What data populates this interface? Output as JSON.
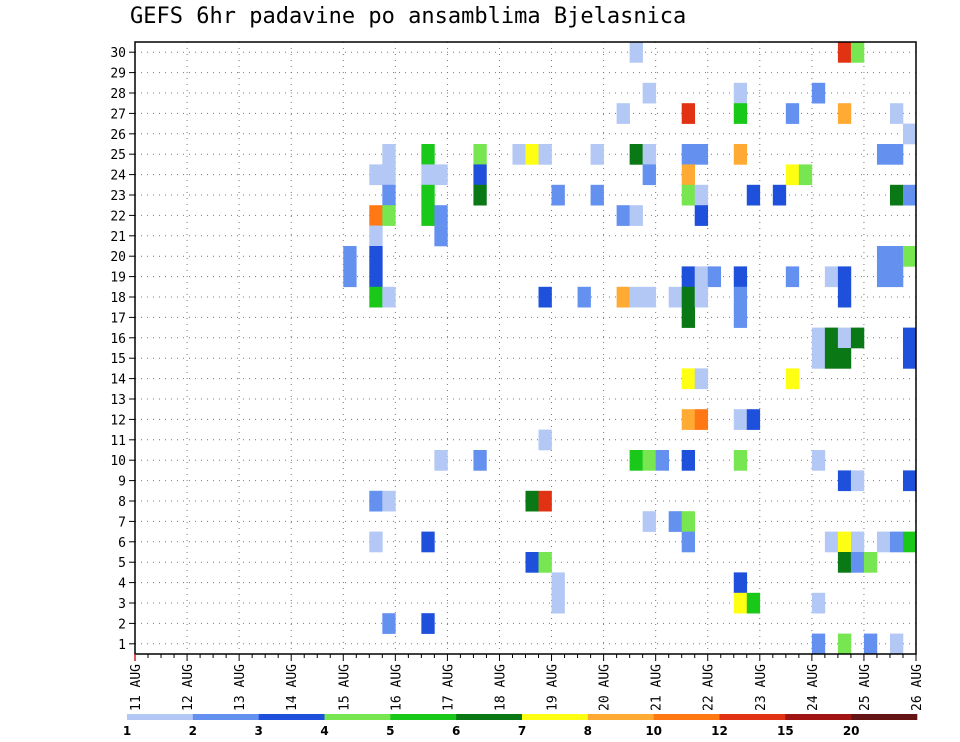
{
  "chart_data": {
    "type": "heatmap",
    "title": "GEFS 6hr padavine po ansamblima Bjelasnica",
    "x_tick_labels": [
      "11 AUG",
      "12 AUG",
      "13 AUG",
      "14 AUG",
      "15 AUG",
      "16 AUG",
      "17 AUG",
      "18 AUG",
      "19 AUG",
      "20 AUG",
      "21 AUG",
      "22 AUG",
      "23 AUG",
      "24 AUG",
      "25 AUG",
      "26 AUG"
    ],
    "y_tick_labels": [
      "1",
      "2",
      "3",
      "4",
      "5",
      "6",
      "7",
      "8",
      "9",
      "10",
      "11",
      "12",
      "13",
      "14",
      "15",
      "16",
      "17",
      "18",
      "19",
      "20",
      "21",
      "22",
      "23",
      "24",
      "25",
      "26",
      "27",
      "28",
      "29",
      "30"
    ],
    "x_unit": "6hr steps since 11 AUG 00z",
    "xlim": [
      0,
      60
    ],
    "ylim": [
      0.5,
      30.5
    ],
    "grid": true,
    "legend_placement": "bottom",
    "colorbar": {
      "labels": [
        "1",
        "2",
        "3",
        "4",
        "5",
        "6",
        "7",
        "8",
        "10",
        "12",
        "15",
        "20"
      ],
      "colors": [
        "#b4c8f5",
        "#6490f0",
        "#1e50dc",
        "#78e650",
        "#19c819",
        "#0a7814",
        "#ffff14",
        "#ffaa32",
        "#ff7814",
        "#e13214",
        "#a01414",
        "#641414"
      ]
    },
    "cells": [
      {
        "member": 30,
        "step": 38.5,
        "bin": 0
      },
      {
        "member": 30,
        "step": 54.5,
        "bin": 9
      },
      {
        "member": 30,
        "step": 55.5,
        "bin": 3
      },
      {
        "member": 28,
        "step": 39.5,
        "bin": 0
      },
      {
        "member": 28,
        "step": 46.5,
        "bin": 0
      },
      {
        "member": 28,
        "step": 52.5,
        "bin": 1
      },
      {
        "member": 27,
        "step": 37.5,
        "bin": 0
      },
      {
        "member": 27,
        "step": 42.5,
        "bin": 9
      },
      {
        "member": 27,
        "step": 46.5,
        "bin": 4
      },
      {
        "member": 27,
        "step": 50.5,
        "bin": 1
      },
      {
        "member": 27,
        "step": 54.5,
        "bin": 7
      },
      {
        "member": 27,
        "step": 58.5,
        "bin": 0
      },
      {
        "member": 26,
        "step": 59.5,
        "bin": 0
      },
      {
        "member": 25,
        "step": 19.5,
        "bin": 0
      },
      {
        "member": 25,
        "step": 22.5,
        "bin": 4
      },
      {
        "member": 25,
        "step": 26.5,
        "bin": 3
      },
      {
        "member": 25,
        "step": 29.5,
        "bin": 0
      },
      {
        "member": 25,
        "step": 30.5,
        "bin": 6
      },
      {
        "member": 25,
        "step": 31.5,
        "bin": 0
      },
      {
        "member": 25,
        "step": 35.5,
        "bin": 0
      },
      {
        "member": 25,
        "step": 38.5,
        "bin": 5
      },
      {
        "member": 25,
        "step": 39.5,
        "bin": 0
      },
      {
        "member": 25,
        "step": 42.5,
        "bin": 1
      },
      {
        "member": 25,
        "step": 43.5,
        "bin": 1
      },
      {
        "member": 25,
        "step": 46.5,
        "bin": 7
      },
      {
        "member": 25,
        "step": 57.5,
        "bin": 1
      },
      {
        "member": 25,
        "step": 58.5,
        "bin": 1
      },
      {
        "member": 24,
        "step": 18.5,
        "bin": 0
      },
      {
        "member": 24,
        "step": 19.5,
        "bin": 0
      },
      {
        "member": 24,
        "step": 22.5,
        "bin": 0
      },
      {
        "member": 24,
        "step": 23.5,
        "bin": 0
      },
      {
        "member": 24,
        "step": 26.5,
        "bin": 2
      },
      {
        "member": 24,
        "step": 39.5,
        "bin": 1
      },
      {
        "member": 24,
        "step": 42.5,
        "bin": 7
      },
      {
        "member": 24,
        "step": 50.5,
        "bin": 6
      },
      {
        "member": 24,
        "step": 51.5,
        "bin": 3
      },
      {
        "member": 23,
        "step": 19.5,
        "bin": 1
      },
      {
        "member": 23,
        "step": 22.5,
        "bin": 4
      },
      {
        "member": 23,
        "step": 26.5,
        "bin": 5
      },
      {
        "member": 23,
        "step": 32.5,
        "bin": 1
      },
      {
        "member": 23,
        "step": 35.5,
        "bin": 1
      },
      {
        "member": 23,
        "step": 42.5,
        "bin": 3
      },
      {
        "member": 23,
        "step": 43.5,
        "bin": 0
      },
      {
        "member": 23,
        "step": 47.5,
        "bin": 2
      },
      {
        "member": 23,
        "step": 49.5,
        "bin": 2
      },
      {
        "member": 23,
        "step": 58.5,
        "bin": 5
      },
      {
        "member": 23,
        "step": 59.5,
        "bin": 1
      },
      {
        "member": 22,
        "step": 18.5,
        "bin": 8
      },
      {
        "member": 22,
        "step": 19.5,
        "bin": 3
      },
      {
        "member": 22,
        "step": 22.5,
        "bin": 4
      },
      {
        "member": 22,
        "step": 23.5,
        "bin": 1
      },
      {
        "member": 22,
        "step": 37.5,
        "bin": 1
      },
      {
        "member": 22,
        "step": 38.5,
        "bin": 0
      },
      {
        "member": 22,
        "step": 43.5,
        "bin": 2
      },
      {
        "member": 21,
        "step": 18.5,
        "bin": 0
      },
      {
        "member": 21,
        "step": 23.5,
        "bin": 1
      },
      {
        "member": 20,
        "step": 16.5,
        "bin": 1
      },
      {
        "member": 20,
        "step": 18.5,
        "bin": 2
      },
      {
        "member": 20,
        "step": 57.5,
        "bin": 1
      },
      {
        "member": 20,
        "step": 58.5,
        "bin": 1
      },
      {
        "member": 20,
        "step": 59.5,
        "bin": 3
      },
      {
        "member": 19,
        "step": 16.5,
        "bin": 1
      },
      {
        "member": 19,
        "step": 18.5,
        "bin": 2
      },
      {
        "member": 19,
        "step": 42.5,
        "bin": 2
      },
      {
        "member": 19,
        "step": 43.5,
        "bin": 0
      },
      {
        "member": 19,
        "step": 44.5,
        "bin": 1
      },
      {
        "member": 19,
        "step": 46.5,
        "bin": 2
      },
      {
        "member": 19,
        "step": 50.5,
        "bin": 1
      },
      {
        "member": 19,
        "step": 53.5,
        "bin": 0
      },
      {
        "member": 19,
        "step": 54.5,
        "bin": 2
      },
      {
        "member": 19,
        "step": 57.5,
        "bin": 1
      },
      {
        "member": 19,
        "step": 58.5,
        "bin": 1
      },
      {
        "member": 18,
        "step": 18.5,
        "bin": 4
      },
      {
        "member": 18,
        "step": 19.5,
        "bin": 0
      },
      {
        "member": 18,
        "step": 31.5,
        "bin": 2
      },
      {
        "member": 18,
        "step": 34.5,
        "bin": 1
      },
      {
        "member": 18,
        "step": 37.5,
        "bin": 7
      },
      {
        "member": 18,
        "step": 38.5,
        "bin": 0
      },
      {
        "member": 18,
        "step": 39.5,
        "bin": 0
      },
      {
        "member": 18,
        "step": 41.5,
        "bin": 0
      },
      {
        "member": 18,
        "step": 42.5,
        "bin": 5
      },
      {
        "member": 18,
        "step": 43.5,
        "bin": 0
      },
      {
        "member": 18,
        "step": 46.5,
        "bin": 1
      },
      {
        "member": 18,
        "step": 54.5,
        "bin": 2
      },
      {
        "member": 17,
        "step": 42.5,
        "bin": 5
      },
      {
        "member": 17,
        "step": 46.5,
        "bin": 1
      },
      {
        "member": 16,
        "step": 52.5,
        "bin": 0
      },
      {
        "member": 16,
        "step": 53.5,
        "bin": 5
      },
      {
        "member": 16,
        "step": 54.5,
        "bin": 0
      },
      {
        "member": 16,
        "step": 55.5,
        "bin": 5
      },
      {
        "member": 16,
        "step": 59.5,
        "bin": 2
      },
      {
        "member": 15,
        "step": 52.5,
        "bin": 0
      },
      {
        "member": 15,
        "step": 53.5,
        "bin": 5
      },
      {
        "member": 15,
        "step": 54.5,
        "bin": 5
      },
      {
        "member": 15,
        "step": 59.5,
        "bin": 2
      },
      {
        "member": 14,
        "step": 42.5,
        "bin": 6
      },
      {
        "member": 14,
        "step": 43.5,
        "bin": 0
      },
      {
        "member": 14,
        "step": 50.5,
        "bin": 6
      },
      {
        "member": 12,
        "step": 42.5,
        "bin": 7
      },
      {
        "member": 12,
        "step": 43.5,
        "bin": 8
      },
      {
        "member": 12,
        "step": 46.5,
        "bin": 0
      },
      {
        "member": 12,
        "step": 47.5,
        "bin": 2
      },
      {
        "member": 11,
        "step": 31.5,
        "bin": 0
      },
      {
        "member": 10,
        "step": 23.5,
        "bin": 0
      },
      {
        "member": 10,
        "step": 26.5,
        "bin": 1
      },
      {
        "member": 10,
        "step": 38.5,
        "bin": 4
      },
      {
        "member": 10,
        "step": 39.5,
        "bin": 3
      },
      {
        "member": 10,
        "step": 40.5,
        "bin": 1
      },
      {
        "member": 10,
        "step": 42.5,
        "bin": 2
      },
      {
        "member": 10,
        "step": 46.5,
        "bin": 3
      },
      {
        "member": 10,
        "step": 52.5,
        "bin": 0
      },
      {
        "member": 9,
        "step": 54.5,
        "bin": 2
      },
      {
        "member": 9,
        "step": 55.5,
        "bin": 0
      },
      {
        "member": 9,
        "step": 59.5,
        "bin": 2
      },
      {
        "member": 8,
        "step": 18.5,
        "bin": 1
      },
      {
        "member": 8,
        "step": 19.5,
        "bin": 0
      },
      {
        "member": 8,
        "step": 30.5,
        "bin": 5
      },
      {
        "member": 8,
        "step": 31.5,
        "bin": 9
      },
      {
        "member": 7,
        "step": 39.5,
        "bin": 0
      },
      {
        "member": 7,
        "step": 41.5,
        "bin": 1
      },
      {
        "member": 7,
        "step": 42.5,
        "bin": 3
      },
      {
        "member": 6,
        "step": 18.5,
        "bin": 0
      },
      {
        "member": 6,
        "step": 22.5,
        "bin": 2
      },
      {
        "member": 6,
        "step": 42.5,
        "bin": 1
      },
      {
        "member": 6,
        "step": 53.5,
        "bin": 0
      },
      {
        "member": 6,
        "step": 54.5,
        "bin": 6
      },
      {
        "member": 6,
        "step": 55.5,
        "bin": 0
      },
      {
        "member": 6,
        "step": 57.5,
        "bin": 0
      },
      {
        "member": 6,
        "step": 58.5,
        "bin": 1
      },
      {
        "member": 6,
        "step": 59.5,
        "bin": 4
      },
      {
        "member": 5,
        "step": 30.5,
        "bin": 2
      },
      {
        "member": 5,
        "step": 31.5,
        "bin": 3
      },
      {
        "member": 5,
        "step": 54.5,
        "bin": 5
      },
      {
        "member": 5,
        "step": 55.5,
        "bin": 1
      },
      {
        "member": 5,
        "step": 56.5,
        "bin": 3
      },
      {
        "member": 4,
        "step": 32.5,
        "bin": 0
      },
      {
        "member": 4,
        "step": 46.5,
        "bin": 2
      },
      {
        "member": 3,
        "step": 32.5,
        "bin": 0
      },
      {
        "member": 3,
        "step": 46.5,
        "bin": 6
      },
      {
        "member": 3,
        "step": 47.5,
        "bin": 4
      },
      {
        "member": 3,
        "step": 52.5,
        "bin": 0
      },
      {
        "member": 2,
        "step": 19.5,
        "bin": 1
      },
      {
        "member": 2,
        "step": 22.5,
        "bin": 2
      },
      {
        "member": 1,
        "step": 52.5,
        "bin": 1
      },
      {
        "member": 1,
        "step": 54.5,
        "bin": 3
      },
      {
        "member": 1,
        "step": 56.5,
        "bin": 1
      },
      {
        "member": 1,
        "step": 58.5,
        "bin": 0
      }
    ]
  }
}
